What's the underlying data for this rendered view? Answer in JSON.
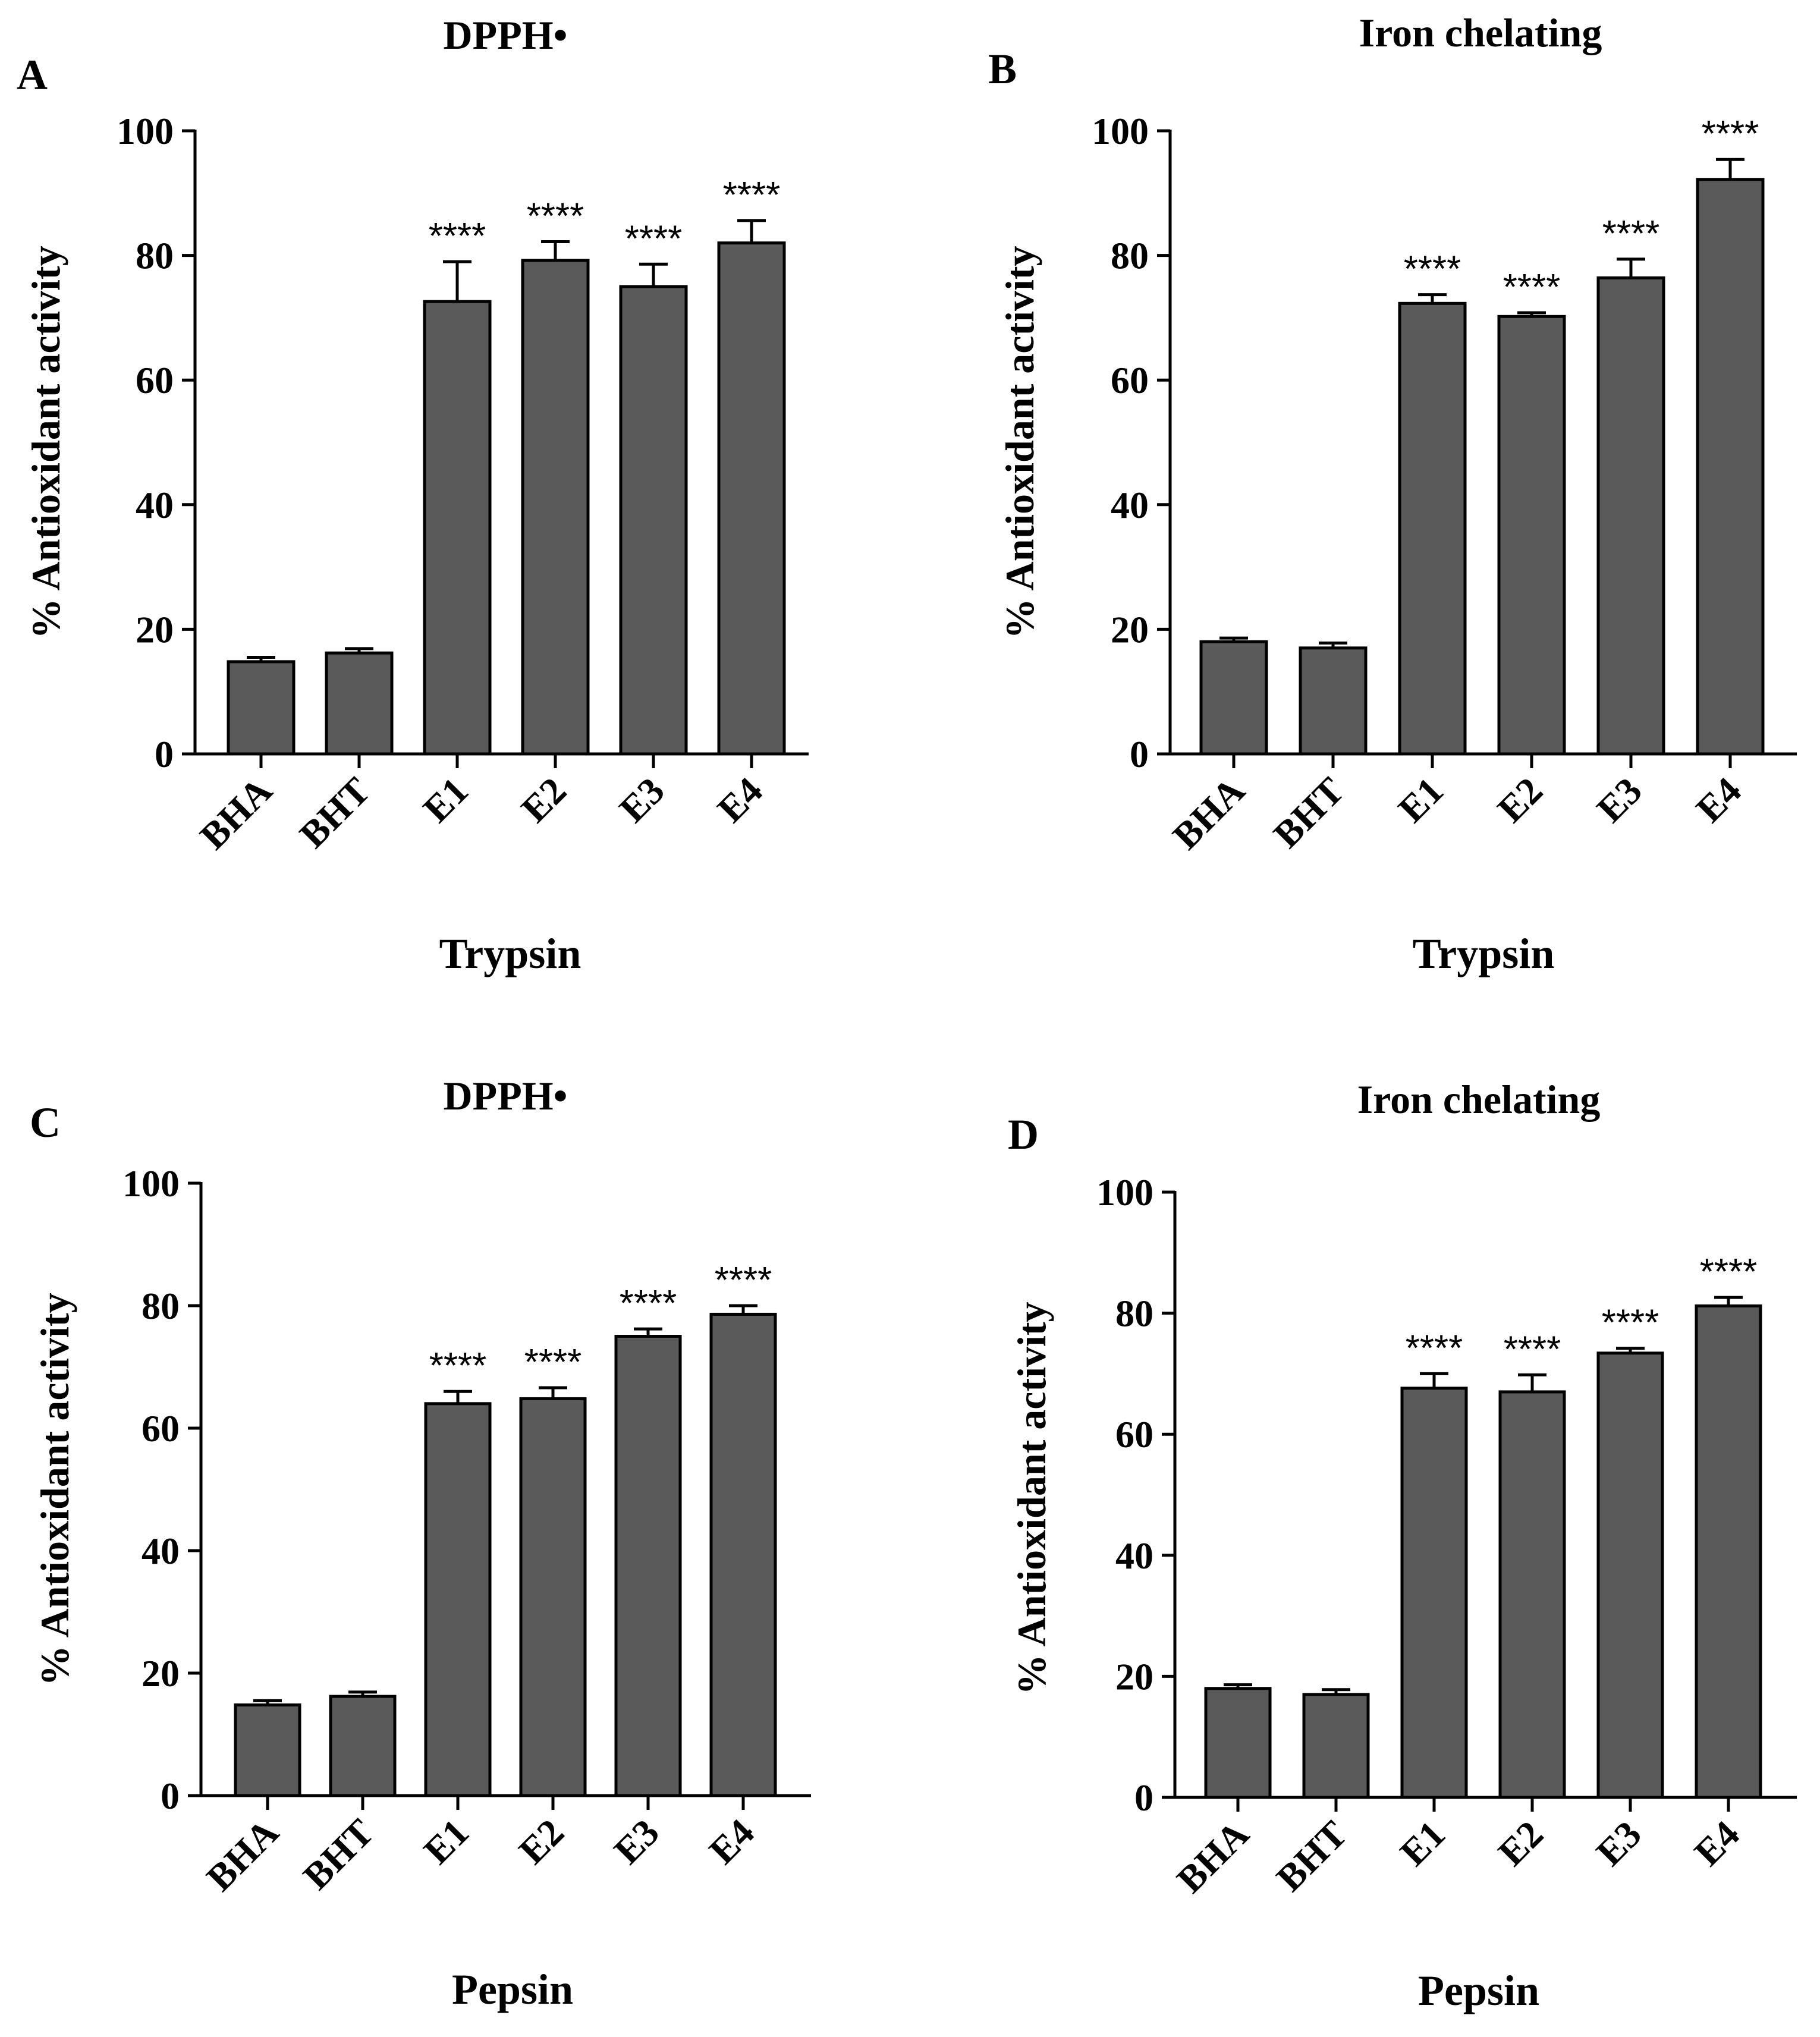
{
  "figure": {
    "bar_color": "#5a5a5a",
    "axis_color": "#000000",
    "background": "#ffffff"
  },
  "chart_data": [
    {
      "panel": "A",
      "type": "bar",
      "title": "DPPH•",
      "xlabel": "Trypsin",
      "ylabel": "% Antioxidant activity",
      "ylim": [
        0,
        100
      ],
      "yticks": [
        0,
        20,
        40,
        60,
        80,
        100
      ],
      "categories": [
        "BHA",
        "BHT",
        "E1",
        "E2",
        "E3",
        "E4"
      ],
      "values": [
        14.8,
        16.2,
        72.6,
        79.2,
        75.0,
        82.0
      ],
      "errors": [
        0.7,
        0.7,
        6.4,
        3.0,
        3.6,
        3.6
      ],
      "significance": [
        "",
        "",
        "****",
        "****",
        "****",
        "****"
      ]
    },
    {
      "panel": "B",
      "type": "bar",
      "title": "Iron chelating",
      "xlabel": "Trypsin",
      "ylabel": "% Antioxidant activity",
      "ylim": [
        0,
        100
      ],
      "yticks": [
        0,
        20,
        40,
        60,
        80,
        100
      ],
      "categories": [
        "BHA",
        "BHT",
        "E1",
        "E2",
        "E3",
        "E4"
      ],
      "values": [
        18.0,
        17.0,
        72.3,
        70.2,
        76.4,
        92.2
      ],
      "errors": [
        0.6,
        0.8,
        1.4,
        0.6,
        3.0,
        3.2
      ],
      "significance": [
        "",
        "",
        "****",
        "****",
        "****",
        "****"
      ]
    },
    {
      "panel": "C",
      "type": "bar",
      "title": "DPPH•",
      "xlabel": "Pepsin",
      "ylabel": "% Antioxidant activity",
      "ylim": [
        0,
        100
      ],
      "yticks": [
        0,
        20,
        40,
        60,
        80,
        100
      ],
      "categories": [
        "BHA",
        "BHT",
        "E1",
        "E2",
        "E3",
        "E4"
      ],
      "values": [
        14.8,
        16.2,
        64.0,
        64.8,
        75.0,
        78.6
      ],
      "errors": [
        0.7,
        0.7,
        2.0,
        1.8,
        1.2,
        1.4
      ],
      "significance": [
        "",
        "",
        "****",
        "****",
        "****",
        "****"
      ]
    },
    {
      "panel": "D",
      "type": "bar",
      "title": "Iron chelating",
      "xlabel": "Pepsin",
      "ylabel": "% Antioxidant activity",
      "ylim": [
        0,
        100
      ],
      "yticks": [
        0,
        20,
        40,
        60,
        80,
        100
      ],
      "categories": [
        "BHA",
        "BHT",
        "E1",
        "E2",
        "E3",
        "E4"
      ],
      "values": [
        18.0,
        17.0,
        67.6,
        67.0,
        73.4,
        81.2
      ],
      "errors": [
        0.6,
        0.8,
        2.4,
        2.8,
        0.8,
        1.4
      ],
      "significance": [
        "",
        "",
        "****",
        "****",
        "****",
        "****"
      ]
    }
  ]
}
